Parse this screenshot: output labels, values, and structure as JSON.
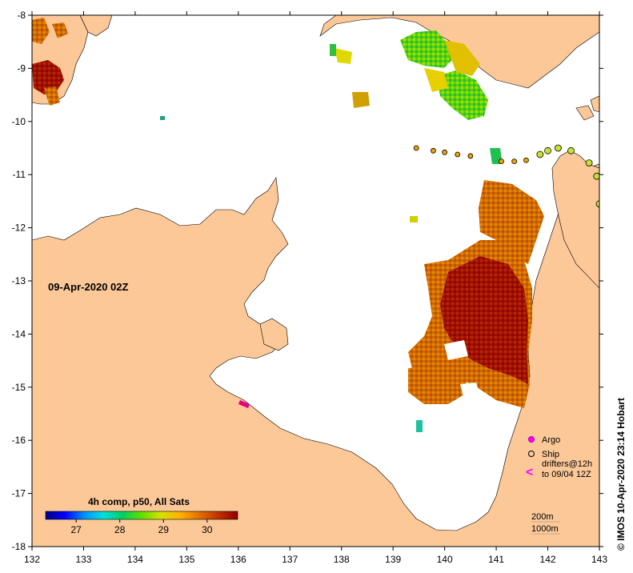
{
  "colors": {
    "land": "#fcc898",
    "ocean": "#ffffff",
    "frame": "#000000",
    "argo": "#ff00ff",
    "ship": "#000000",
    "drifter": "#ff00ff"
  },
  "map": {
    "lon_range": [
      132,
      143
    ],
    "lat_range": [
      -18,
      -8
    ],
    "date_label": "09-Apr-2020 02Z",
    "credit": "© IMOS 10-Apr-2020 23:14 Hobart"
  },
  "axes": {
    "x_ticks": [
      "132",
      "133",
      "134",
      "135",
      "136",
      "137",
      "138",
      "139",
      "140",
      "141",
      "142",
      "143"
    ],
    "y_ticks": [
      "-8",
      "-9",
      "-10",
      "-11",
      "-12",
      "-13",
      "-14",
      "-15",
      "-16",
      "-17",
      "-18"
    ]
  },
  "colorbar": {
    "title": "4h comp, p50, All Sats",
    "tick_labels": [
      "27",
      "28",
      "29",
      "30"
    ],
    "range": [
      26.3,
      30.7
    ],
    "stops": [
      "#00008a",
      "#0000ff",
      "#0090ff",
      "#00e0e0",
      "#00d060",
      "#60e000",
      "#d8e000",
      "#ffb000",
      "#e07000",
      "#c03000",
      "#900000"
    ]
  },
  "legend": {
    "argo_label": "Argo",
    "ship_label": "Ship",
    "drifters_line1": "drifters@12h",
    "drifters_line2": "to 09/04 12Z",
    "arrow_glyph": "<",
    "depth_200": "200m",
    "depth_1000": "1000m"
  },
  "ship_track": [
    {
      "lon": 139.45,
      "lat": -10.5
    },
    {
      "lon": 139.78,
      "lat": -10.55
    },
    {
      "lon": 140.0,
      "lat": -10.58
    },
    {
      "lon": 140.25,
      "lat": -10.62
    },
    {
      "lon": 140.5,
      "lat": -10.65
    },
    {
      "lon": 141.1,
      "lat": -10.75
    },
    {
      "lon": 141.35,
      "lat": -10.75
    },
    {
      "lon": 141.58,
      "lat": -10.73
    },
    {
      "lon": 141.85,
      "lat": -10.62
    },
    {
      "lon": 142.0,
      "lat": -10.55
    },
    {
      "lon": 142.2,
      "lat": -10.5
    },
    {
      "lon": 142.45,
      "lat": -10.55
    },
    {
      "lon": 142.8,
      "lat": -10.78
    },
    {
      "lon": 142.95,
      "lat": -11.03
    },
    {
      "lon": 143.0,
      "lat": -11.55
    }
  ]
}
